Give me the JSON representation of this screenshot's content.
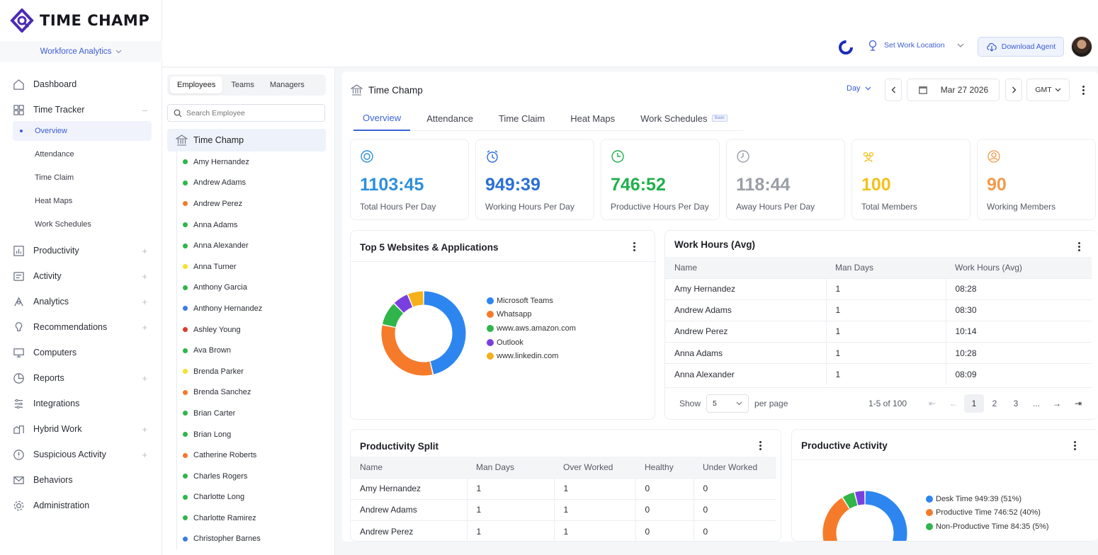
{
  "brand": {
    "name": "TIME CHAMP",
    "module": "Workforce Analytics",
    "accent": "#3d5bd6"
  },
  "sidebar": {
    "items": [
      {
        "label": "Dashboard",
        "icon": "home-icon",
        "expand": false
      },
      {
        "label": "Time Tracker",
        "icon": "grid-icon",
        "expand": true
      },
      {
        "label": "Productivity",
        "icon": "bar-chart-icon",
        "expand": true
      },
      {
        "label": "Activity",
        "icon": "activity-icon",
        "expand": true
      },
      {
        "label": "Analytics",
        "icon": "analytics-icon",
        "expand": true
      },
      {
        "label": "Recommendations",
        "icon": "bulb-icon",
        "expand": true
      },
      {
        "label": "Computers",
        "icon": "monitor-icon",
        "expand": false
      },
      {
        "label": "Reports",
        "icon": "report-icon",
        "expand": true
      },
      {
        "label": "Integrations",
        "icon": "integrations-icon",
        "expand": false
      },
      {
        "label": "Hybrid Work",
        "icon": "hybrid-icon",
        "expand": true
      },
      {
        "label": "Suspicious Activity",
        "icon": "alert-icon",
        "expand": true
      },
      {
        "label": "Behaviors",
        "icon": "mail-icon",
        "expand": false
      },
      {
        "label": "Administration",
        "icon": "gear-icon",
        "expand": false
      }
    ],
    "time_tracker_sub": [
      "Overview",
      "Attendance",
      "Time Claim",
      "Heat Maps",
      "Work Schedules"
    ]
  },
  "header": {
    "set_location": "Set Work Location",
    "download_agent": "Download Agent"
  },
  "employees": {
    "tabs": [
      "Employees",
      "Teams",
      "Managers"
    ],
    "search_placeholder": "Search Employee",
    "org": "Time Champ",
    "list": [
      {
        "name": "Amy Hernandez",
        "status": "#2fb54a"
      },
      {
        "name": "Andrew Adams",
        "status": "#2fb54a"
      },
      {
        "name": "Andrew Perez",
        "status": "#f07a2a"
      },
      {
        "name": "Anna Adams",
        "status": "#2fb54a"
      },
      {
        "name": "Anna Alexander",
        "status": "#2fb54a"
      },
      {
        "name": "Anna Turner",
        "status": "#f5e12a"
      },
      {
        "name": "Anthony Garcia",
        "status": "#2fb54a"
      },
      {
        "name": "Anthony Hernandez",
        "status": "#3c7be0"
      },
      {
        "name": "Ashley Young",
        "status": "#e03a2f"
      },
      {
        "name": "Ava Brown",
        "status": "#2fb54a"
      },
      {
        "name": "Brenda Parker",
        "status": "#f5e12a"
      },
      {
        "name": "Brenda Sanchez",
        "status": "#f07a2a"
      },
      {
        "name": "Brian Carter",
        "status": "#2fb54a"
      },
      {
        "name": "Brian Long",
        "status": "#2fb54a"
      },
      {
        "name": "Catherine Roberts",
        "status": "#f07a2a"
      },
      {
        "name": "Charles Rogers",
        "status": "#2fb54a"
      },
      {
        "name": "Charlotte Long",
        "status": "#2fb54a"
      },
      {
        "name": "Charlotte Ramirez",
        "status": "#2fb54a"
      },
      {
        "name": "Christopher Barnes",
        "status": "#3c7be0"
      }
    ]
  },
  "main": {
    "title": "Time Champ",
    "tabs": [
      "Overview",
      "Attendance",
      "Time Claim",
      "Heat Maps",
      "Work Schedules"
    ],
    "soon": "Soon",
    "period": "Day",
    "date": "Mar 27 2026",
    "tz": "GMT",
    "stats": [
      {
        "value": "1103:45",
        "label": "Total Hours Per Day",
        "color": "#2d8fdc"
      },
      {
        "value": "949:39",
        "label": "Working Hours Per Day",
        "color": "#2a6fd6"
      },
      {
        "value": "746:52",
        "label": "Productive Hours Per Day",
        "color": "#21b04b"
      },
      {
        "value": "118:44",
        "label": "Away Hours Per Day",
        "color": "#9a9ea6"
      },
      {
        "value": "100",
        "label": "Total Members",
        "color": "#f2c21a"
      },
      {
        "value": "90",
        "label": "Working Members",
        "color": "#f29a4a"
      }
    ],
    "top5": {
      "title": "Top 5 Websites & Applications",
      "legend": [
        {
          "name": "Microsoft Teams",
          "color": "#2d86f0"
        },
        {
          "name": "Whatsapp",
          "color": "#f57b2a"
        },
        {
          "name": "www.aws.amazon.com",
          "color": "#2fb54a"
        },
        {
          "name": "Outlook",
          "color": "#7a3fe0"
        },
        {
          "name": "www.linkedin.com",
          "color": "#f5b01a"
        }
      ],
      "values": [
        45,
        31,
        9,
        6,
        6
      ]
    },
    "work_hours": {
      "title": "Work Hours (Avg)",
      "columns": [
        "Name",
        "Man Days",
        "Work Hours (Avg)"
      ],
      "rows": [
        [
          "Amy Hernandez",
          "1",
          "08:28"
        ],
        [
          "Andrew Adams",
          "1",
          "08:30"
        ],
        [
          "Andrew Perez",
          "1",
          "10:14"
        ],
        [
          "Anna Adams",
          "1",
          "10:28"
        ],
        [
          "Anna Alexander",
          "1",
          "08:09"
        ]
      ],
      "show": "Show",
      "per_page_value": "5",
      "per_page": "per page",
      "range": "1-5 of 100",
      "pages": [
        "1",
        "2",
        "3",
        "..."
      ]
    },
    "prod_split": {
      "title": "Productivity Split",
      "columns": [
        "Name",
        "Man Days",
        "Over Worked",
        "Healthy",
        "Under Worked"
      ],
      "rows": [
        [
          "Amy Hernandez",
          "1",
          "1",
          "0",
          "0"
        ],
        [
          "Andrew Adams",
          "1",
          "1",
          "0",
          "0"
        ],
        [
          "Andrew Perez",
          "1",
          "1",
          "0",
          "0"
        ]
      ]
    },
    "prod_activity": {
      "title": "Productive Activity",
      "legend": [
        {
          "name": "Desk Time 949:39 (51%)",
          "color": "#2d86f0"
        },
        {
          "name": "Productive Time 746:52 (40%)",
          "color": "#f57b2a"
        },
        {
          "name": "Non-Productive Time 84:35 (5%)",
          "color": "#2fb54a"
        }
      ]
    }
  }
}
